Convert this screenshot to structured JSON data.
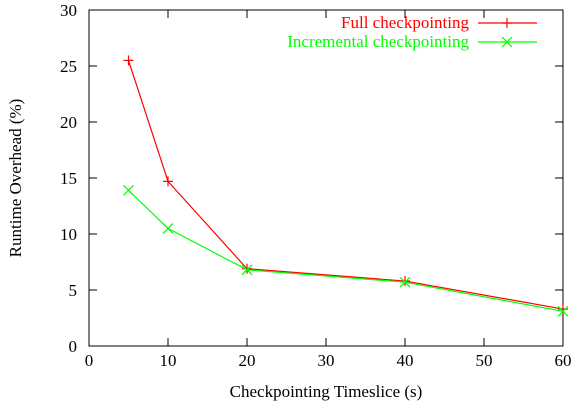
{
  "chart_data": {
    "type": "line",
    "xlabel": "Checkpointing Timeslice (s)",
    "ylabel": "Runtime Overhead (%)",
    "xlim": [
      0,
      60
    ],
    "ylim": [
      0,
      30
    ],
    "xticks": [
      0,
      10,
      20,
      30,
      40,
      50,
      60
    ],
    "yticks": [
      0,
      5,
      10,
      15,
      20,
      25,
      30
    ],
    "grid": false,
    "legend_position": "top-right",
    "series": [
      {
        "name": "Full checkpointing",
        "color": "#ff0000",
        "marker": "plus",
        "x": [
          5,
          10,
          20,
          40,
          60
        ],
        "y": [
          25.5,
          14.7,
          6.9,
          5.8,
          3.3
        ]
      },
      {
        "name": "Incremental checkpointing",
        "color": "#00ff00",
        "marker": "cross",
        "x": [
          5,
          10,
          20,
          40,
          60
        ],
        "y": [
          13.9,
          10.5,
          6.8,
          5.7,
          3.1
        ]
      }
    ]
  }
}
